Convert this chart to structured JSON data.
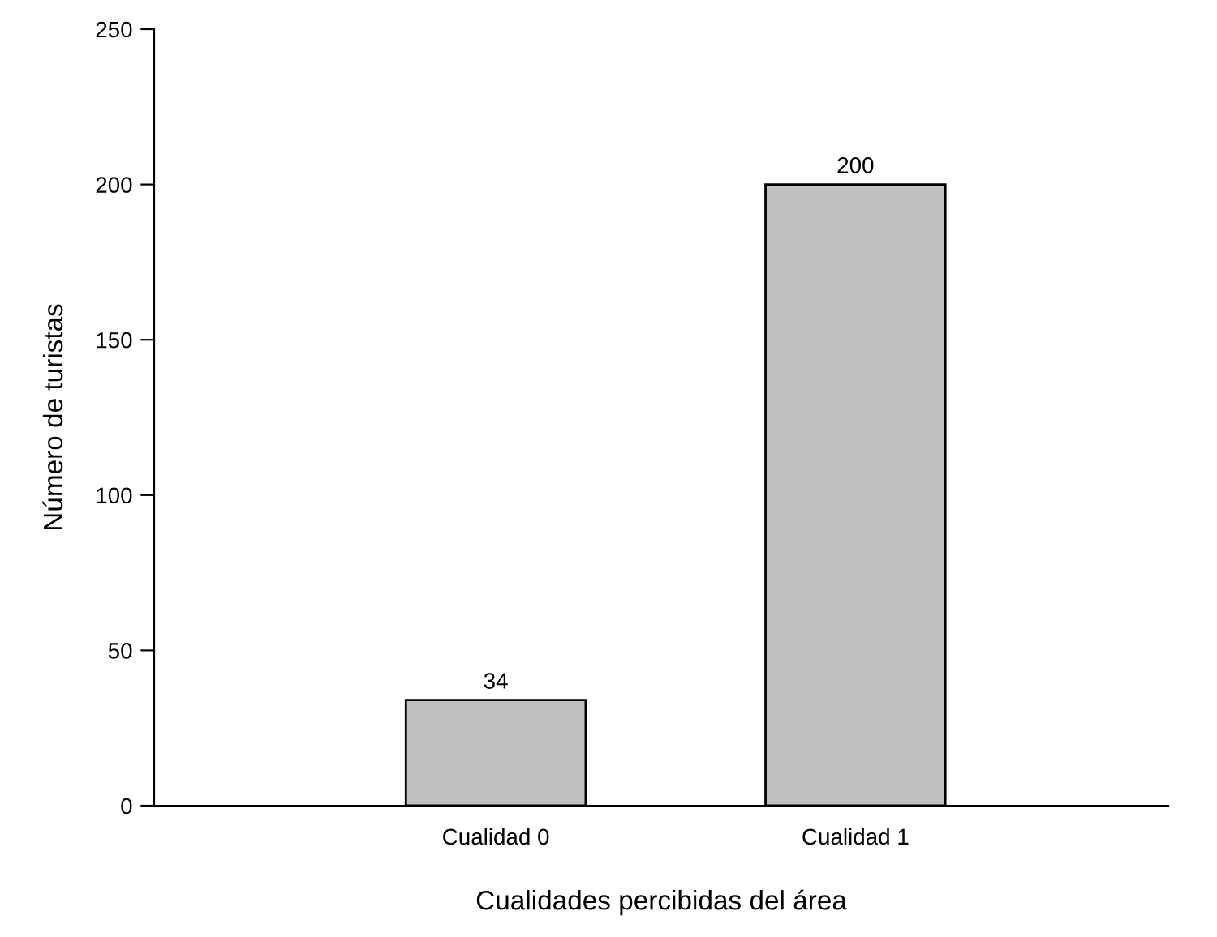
{
  "chart_data": {
    "type": "bar",
    "xlabel": "Cualidades percibidas del área",
    "ylabel": "Número de turistas",
    "categories": [
      "Cualidad 0",
      "Cualidad 1"
    ],
    "values": [
      34,
      200
    ],
    "color": "#c0c0c0",
    "ylim": [
      0,
      250
    ],
    "yticks": [
      0,
      50,
      100,
      150,
      200,
      250
    ],
    "data_labels": true,
    "grid": false,
    "legend": false
  }
}
